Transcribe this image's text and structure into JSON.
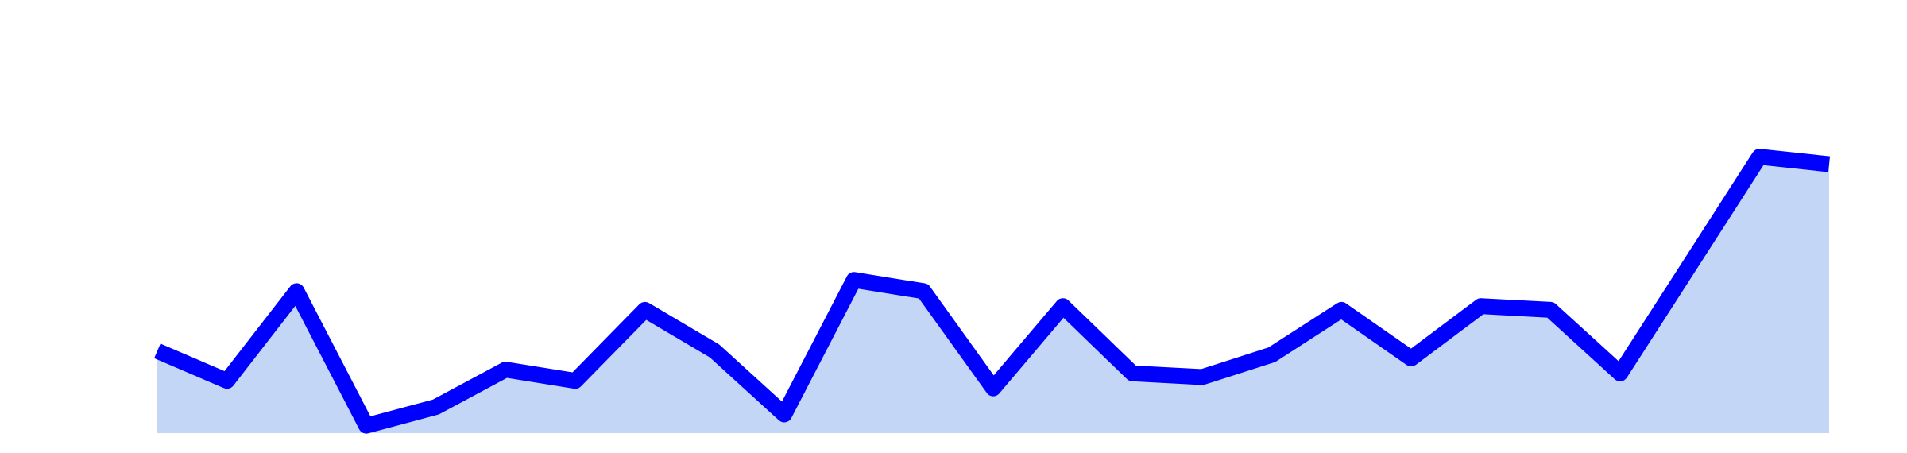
{
  "chart_data": {
    "type": "area",
    "x": [
      0,
      1,
      2,
      3,
      4,
      5,
      6,
      7,
      8,
      9,
      10,
      11,
      12,
      13,
      14,
      15,
      16,
      17,
      18,
      19,
      20,
      21,
      22,
      23,
      24
    ],
    "series": [
      {
        "values": [
          22,
          14,
          38,
          2,
          7,
          17,
          14,
          33,
          22,
          5,
          41,
          38,
          12,
          34,
          16,
          15,
          21,
          33,
          20,
          34,
          33,
          16,
          45,
          74,
          72
        ]
      }
    ],
    "colors": {
      "line": "#0000ff",
      "fill": "#c3d6f5"
    },
    "grid": false,
    "axes_visible": false,
    "title": "",
    "xlabel": "",
    "ylabel": ""
  }
}
